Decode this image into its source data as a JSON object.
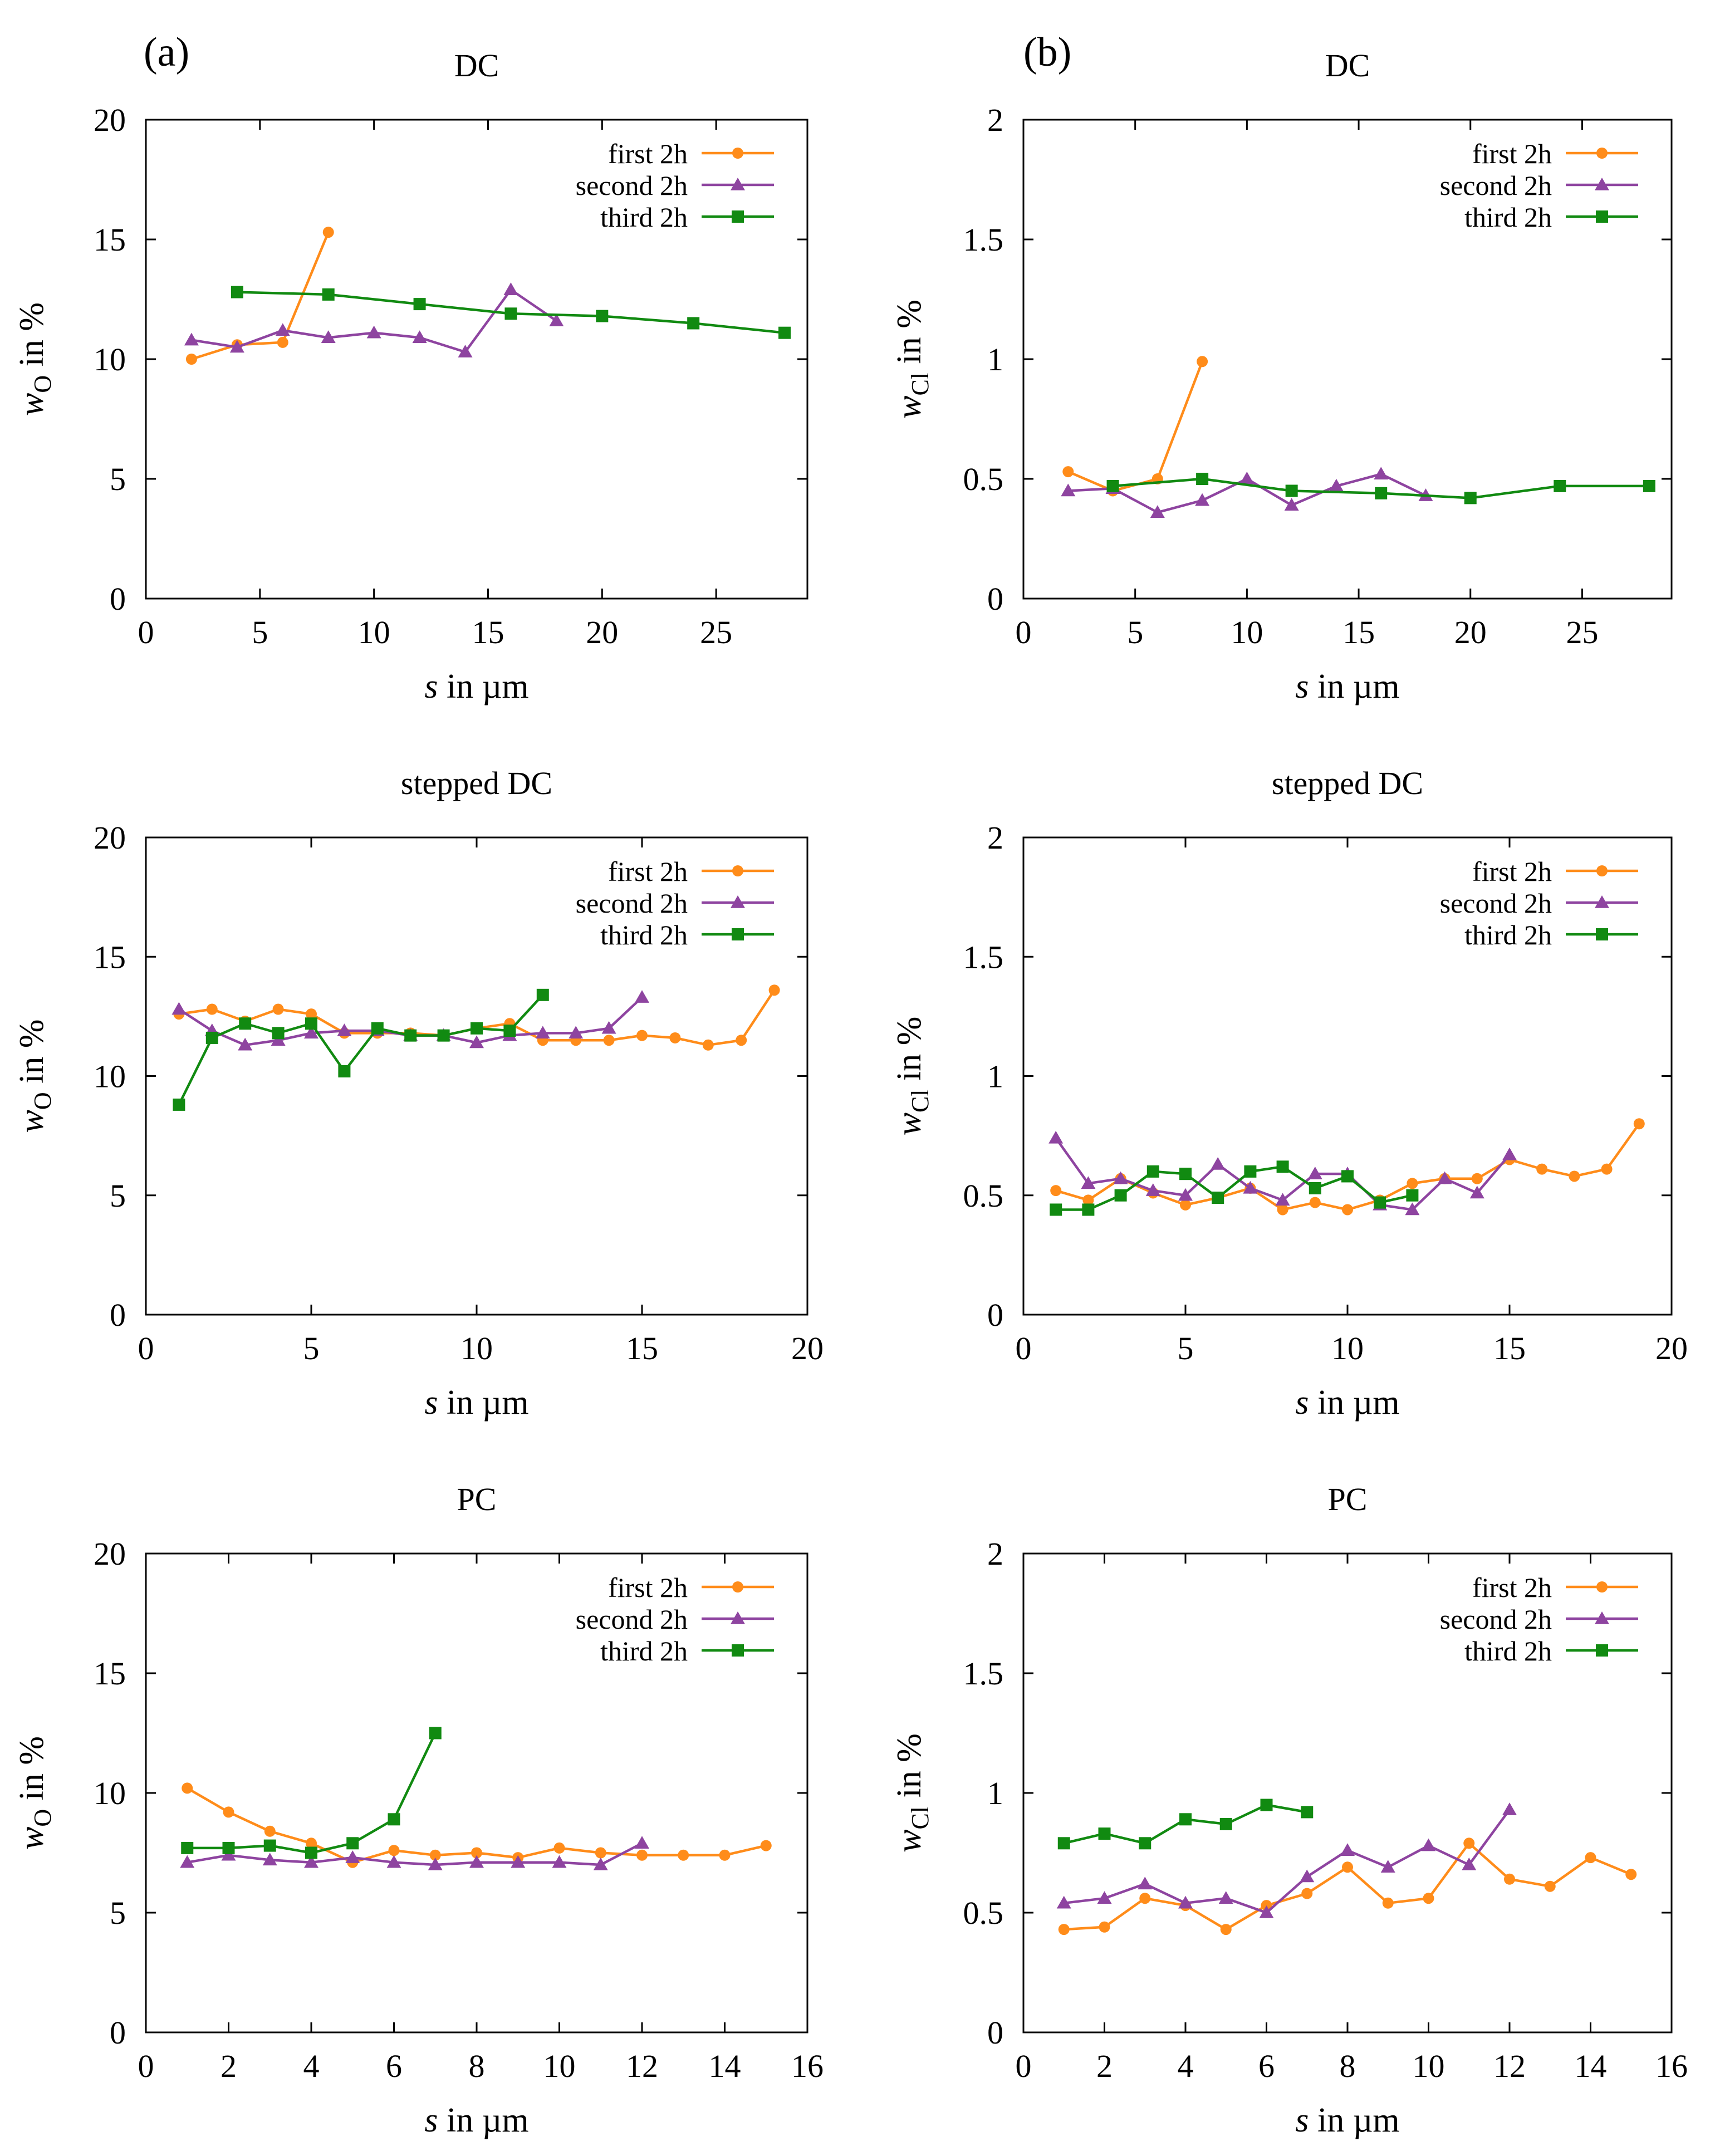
{
  "panel_labels": {
    "a": "(a)",
    "b": "(b)"
  },
  "colors": {
    "first": "#ff8c1a",
    "second": "#8e44a0",
    "third": "#118a11"
  },
  "chart_data": [
    {
      "type": "line",
      "title": "DC",
      "xlabel": "s in µm",
      "ylabel": "w_O in %",
      "ylabel_parts": [
        "w",
        "O",
        " in %"
      ],
      "xlim": [
        0,
        29
      ],
      "xticks": [
        0,
        5,
        10,
        15,
        20,
        25
      ],
      "ylim": [
        0,
        20
      ],
      "yticks": [
        0,
        5,
        10,
        15,
        20
      ],
      "legend_position": "top-right",
      "series": [
        {
          "name": "first 2h",
          "marker": "circle",
          "color": "#ff8c1a",
          "x": [
            2,
            4,
            6,
            8
          ],
          "y": [
            10.0,
            10.6,
            10.7,
            15.3
          ]
        },
        {
          "name": "second 2h",
          "marker": "triangle",
          "color": "#8e44a0",
          "x": [
            2,
            4,
            6,
            8,
            10,
            12,
            14,
            16,
            18
          ],
          "y": [
            10.8,
            10.5,
            11.2,
            10.9,
            11.1,
            10.9,
            10.3,
            12.9,
            11.6
          ]
        },
        {
          "name": "third 2h",
          "marker": "square",
          "color": "#118a11",
          "x": [
            4,
            8,
            12,
            16,
            20,
            24,
            28
          ],
          "y": [
            12.8,
            12.7,
            12.3,
            11.9,
            11.8,
            11.5,
            11.1
          ]
        }
      ]
    },
    {
      "type": "line",
      "title": "DC",
      "xlabel": "s in µm",
      "ylabel": "w_Cl in %",
      "ylabel_parts": [
        "w",
        "Cl",
        " in %"
      ],
      "xlim": [
        0,
        29
      ],
      "xticks": [
        0,
        5,
        10,
        15,
        20,
        25
      ],
      "ylim": [
        0,
        2
      ],
      "yticks": [
        0,
        0.5,
        1,
        1.5,
        2
      ],
      "legend_position": "top-right",
      "series": [
        {
          "name": "first 2h",
          "marker": "circle",
          "color": "#ff8c1a",
          "x": [
            2,
            4,
            6,
            8
          ],
          "y": [
            0.53,
            0.45,
            0.5,
            0.99
          ]
        },
        {
          "name": "second 2h",
          "marker": "triangle",
          "color": "#8e44a0",
          "x": [
            2,
            4,
            6,
            8,
            10,
            12,
            14,
            16,
            18
          ],
          "y": [
            0.45,
            0.46,
            0.36,
            0.41,
            0.5,
            0.39,
            0.47,
            0.52,
            0.43
          ]
        },
        {
          "name": "third 2h",
          "marker": "square",
          "color": "#118a11",
          "x": [
            4,
            8,
            12,
            16,
            20,
            24,
            28
          ],
          "y": [
            0.47,
            0.5,
            0.45,
            0.44,
            0.42,
            0.47,
            0.47
          ]
        }
      ]
    },
    {
      "type": "line",
      "title": "stepped DC",
      "xlabel": "s in µm",
      "ylabel": "w_O in %",
      "ylabel_parts": [
        "w",
        "O",
        " in %"
      ],
      "xlim": [
        0,
        20
      ],
      "xticks": [
        0,
        5,
        10,
        15,
        20
      ],
      "ylim": [
        0,
        20
      ],
      "yticks": [
        0,
        5,
        10,
        15,
        20
      ],
      "legend_position": "top-right",
      "series": [
        {
          "name": "first 2h",
          "marker": "circle",
          "color": "#ff8c1a",
          "x": [
            1,
            2,
            3,
            4,
            5,
            6,
            7,
            8,
            9,
            10,
            11,
            12,
            13,
            14,
            15,
            16,
            17,
            18,
            19
          ],
          "y": [
            12.6,
            12.8,
            12.3,
            12.8,
            12.6,
            11.8,
            11.8,
            11.8,
            11.7,
            12.0,
            12.2,
            11.5,
            11.5,
            11.5,
            11.7,
            11.6,
            11.3,
            11.5,
            13.6
          ]
        },
        {
          "name": "second 2h",
          "marker": "triangle",
          "color": "#8e44a0",
          "x": [
            1,
            2,
            3,
            4,
            5,
            6,
            7,
            8,
            9,
            10,
            11,
            12,
            13,
            14,
            15
          ],
          "y": [
            12.8,
            11.9,
            11.3,
            11.5,
            11.8,
            11.9,
            11.9,
            11.7,
            11.7,
            11.4,
            11.7,
            11.8,
            11.8,
            12.0,
            13.3
          ]
        },
        {
          "name": "third 2h",
          "marker": "square",
          "color": "#118a11",
          "x": [
            1,
            2,
            3,
            4,
            5,
            6,
            7,
            8,
            9,
            10,
            11,
            12
          ],
          "y": [
            8.8,
            11.6,
            12.2,
            11.8,
            12.2,
            10.2,
            12.0,
            11.7,
            11.7,
            12.0,
            11.9,
            13.4
          ]
        }
      ]
    },
    {
      "type": "line",
      "title": "stepped DC",
      "xlabel": "s in µm",
      "ylabel": "w_Cl in %",
      "ylabel_parts": [
        "w",
        "Cl",
        " in %"
      ],
      "xlim": [
        0,
        20
      ],
      "xticks": [
        0,
        5,
        10,
        15,
        20
      ],
      "ylim": [
        0,
        2
      ],
      "yticks": [
        0,
        0.5,
        1,
        1.5,
        2
      ],
      "legend_position": "top-right",
      "series": [
        {
          "name": "first 2h",
          "marker": "circle",
          "color": "#ff8c1a",
          "x": [
            1,
            2,
            3,
            4,
            5,
            6,
            7,
            8,
            9,
            10,
            11,
            12,
            13,
            14,
            15,
            16,
            17,
            18,
            19
          ],
          "y": [
            0.52,
            0.48,
            0.57,
            0.51,
            0.46,
            0.49,
            0.53,
            0.44,
            0.47,
            0.44,
            0.48,
            0.55,
            0.57,
            0.57,
            0.65,
            0.61,
            0.58,
            0.61,
            0.8
          ]
        },
        {
          "name": "second 2h",
          "marker": "triangle",
          "color": "#8e44a0",
          "x": [
            1,
            2,
            3,
            4,
            5,
            6,
            7,
            8,
            9,
            10,
            11,
            12,
            13,
            14,
            15
          ],
          "y": [
            0.74,
            0.55,
            0.57,
            0.52,
            0.5,
            0.63,
            0.53,
            0.48,
            0.59,
            0.59,
            0.46,
            0.44,
            0.57,
            0.51,
            0.67
          ]
        },
        {
          "name": "third 2h",
          "marker": "square",
          "color": "#118a11",
          "x": [
            1,
            2,
            3,
            4,
            5,
            6,
            7,
            8,
            9,
            10,
            11,
            12
          ],
          "y": [
            0.44,
            0.44,
            0.5,
            0.6,
            0.59,
            0.49,
            0.6,
            0.62,
            0.53,
            0.58,
            0.47,
            0.5
          ]
        }
      ]
    },
    {
      "type": "line",
      "title": "PC",
      "xlabel": "s in µm",
      "ylabel": "w_O in %",
      "ylabel_parts": [
        "w",
        "O",
        " in %"
      ],
      "xlim": [
        0,
        16
      ],
      "xticks": [
        0,
        2,
        4,
        6,
        8,
        10,
        12,
        14,
        16
      ],
      "ylim": [
        0,
        20
      ],
      "yticks": [
        0,
        5,
        10,
        15,
        20
      ],
      "legend_position": "top-right",
      "series": [
        {
          "name": "first 2h",
          "marker": "circle",
          "color": "#ff8c1a",
          "x": [
            1,
            2,
            3,
            4,
            5,
            6,
            7,
            8,
            9,
            10,
            11,
            12,
            13,
            14,
            15
          ],
          "y": [
            10.2,
            9.2,
            8.4,
            7.9,
            7.1,
            7.6,
            7.4,
            7.5,
            7.3,
            7.7,
            7.5,
            7.4,
            7.4,
            7.4,
            7.8
          ]
        },
        {
          "name": "second 2h",
          "marker": "triangle",
          "color": "#8e44a0",
          "x": [
            1,
            2,
            3,
            4,
            5,
            6,
            7,
            8,
            9,
            10,
            11,
            12
          ],
          "y": [
            7.1,
            7.4,
            7.2,
            7.1,
            7.3,
            7.1,
            7.0,
            7.1,
            7.1,
            7.1,
            7.0,
            7.9
          ]
        },
        {
          "name": "third 2h",
          "marker": "square",
          "color": "#118a11",
          "x": [
            1,
            2,
            3,
            4,
            5,
            6,
            7
          ],
          "y": [
            7.7,
            7.7,
            7.8,
            7.5,
            7.9,
            8.9,
            12.5
          ]
        }
      ]
    },
    {
      "type": "line",
      "title": "PC",
      "xlabel": "s in µm",
      "ylabel": "w_Cl in %",
      "ylabel_parts": [
        "w",
        "Cl",
        " in %"
      ],
      "xlim": [
        0,
        16
      ],
      "xticks": [
        0,
        2,
        4,
        6,
        8,
        10,
        12,
        14,
        16
      ],
      "ylim": [
        0,
        2
      ],
      "yticks": [
        0,
        0.5,
        1,
        1.5,
        2
      ],
      "legend_position": "top-right",
      "series": [
        {
          "name": "first 2h",
          "marker": "circle",
          "color": "#ff8c1a",
          "x": [
            1,
            2,
            3,
            4,
            5,
            6,
            7,
            8,
            9,
            10,
            11,
            12,
            13,
            14,
            15
          ],
          "y": [
            0.43,
            0.44,
            0.56,
            0.53,
            0.43,
            0.53,
            0.58,
            0.69,
            0.54,
            0.56,
            0.79,
            0.64,
            0.61,
            0.73,
            0.66
          ]
        },
        {
          "name": "second 2h",
          "marker": "triangle",
          "color": "#8e44a0",
          "x": [
            1,
            2,
            3,
            4,
            5,
            6,
            7,
            8,
            9,
            10,
            11,
            12
          ],
          "y": [
            0.54,
            0.56,
            0.62,
            0.54,
            0.56,
            0.5,
            0.65,
            0.76,
            0.69,
            0.78,
            0.7,
            0.93
          ]
        },
        {
          "name": "third 2h",
          "marker": "square",
          "color": "#118a11",
          "x": [
            1,
            2,
            3,
            4,
            5,
            6,
            7
          ],
          "y": [
            0.79,
            0.83,
            0.79,
            0.89,
            0.87,
            0.95,
            0.92
          ]
        }
      ]
    }
  ]
}
